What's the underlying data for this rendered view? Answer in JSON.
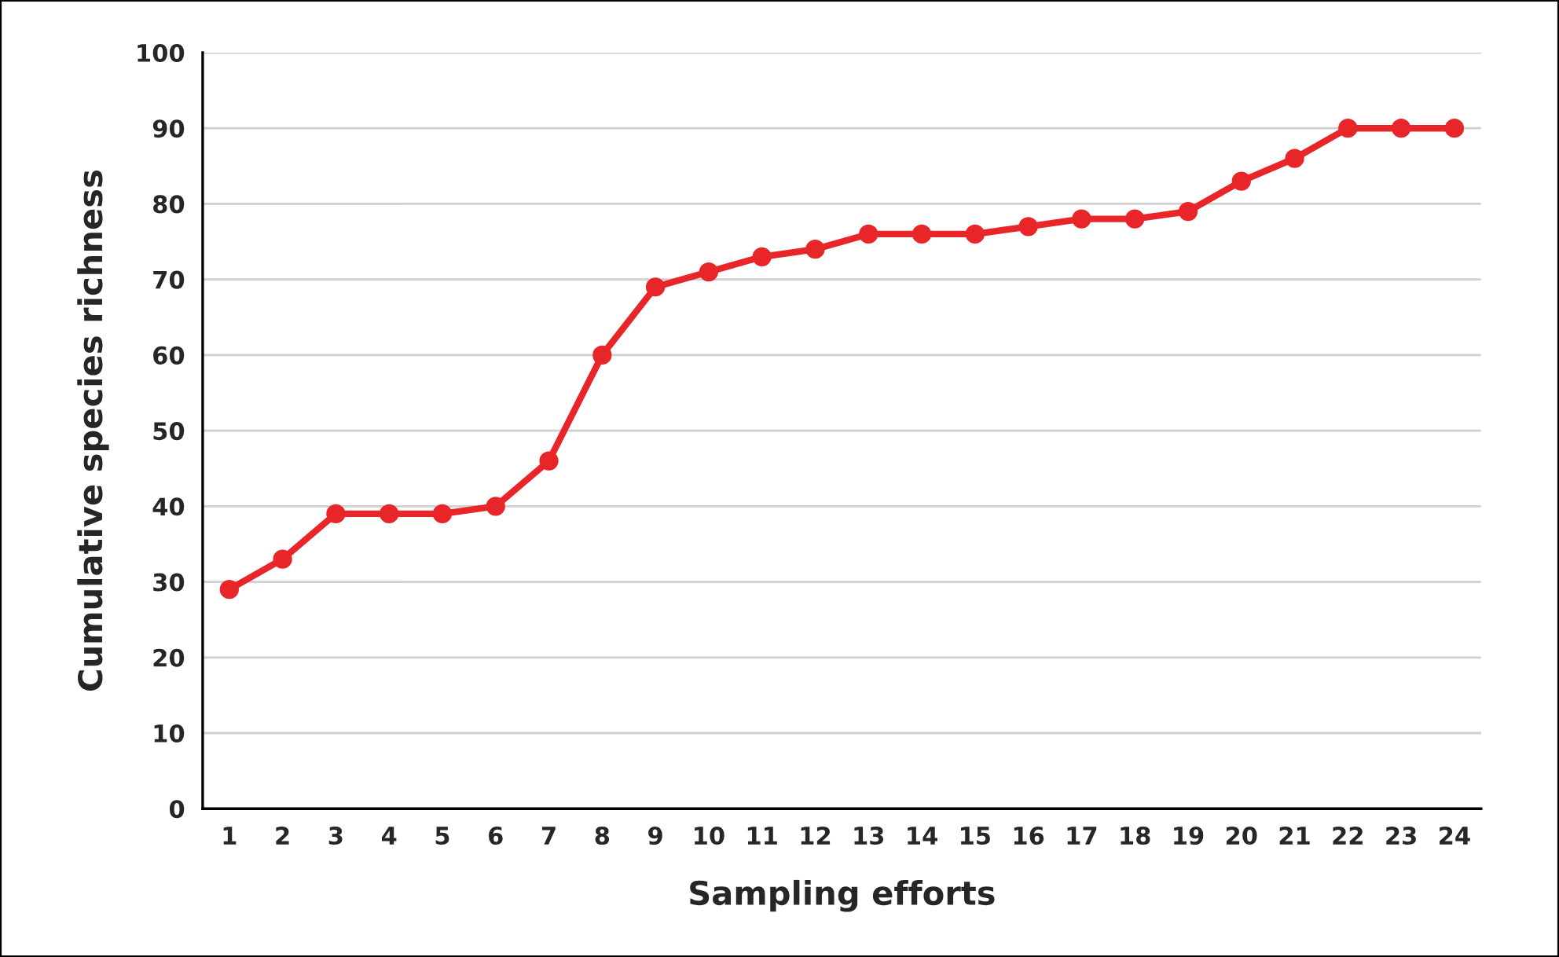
{
  "chart_data": {
    "type": "line",
    "xlabel": "Sampling efforts",
    "ylabel": "Cumulative species richness",
    "categories": [
      "1",
      "2",
      "3",
      "4",
      "5",
      "6",
      "7",
      "8",
      "9",
      "10",
      "11",
      "12",
      "13",
      "14",
      "15",
      "16",
      "17",
      "18",
      "19",
      "20",
      "21",
      "22",
      "23",
      "24"
    ],
    "series": [
      {
        "color": "#e8262a",
        "values": [
          29,
          33,
          39,
          39,
          39,
          40,
          46,
          60,
          69,
          71,
          73,
          74,
          76,
          76,
          76,
          77,
          78,
          78,
          79,
          83,
          86,
          90,
          90,
          90
        ]
      }
    ],
    "ylim": [
      0,
      100
    ],
    "yticks": [
      0,
      10,
      20,
      30,
      40,
      50,
      60,
      70,
      80,
      90,
      100
    ],
    "grid": "y",
    "marker": "circle",
    "line_style": "solid",
    "legend": false
  }
}
